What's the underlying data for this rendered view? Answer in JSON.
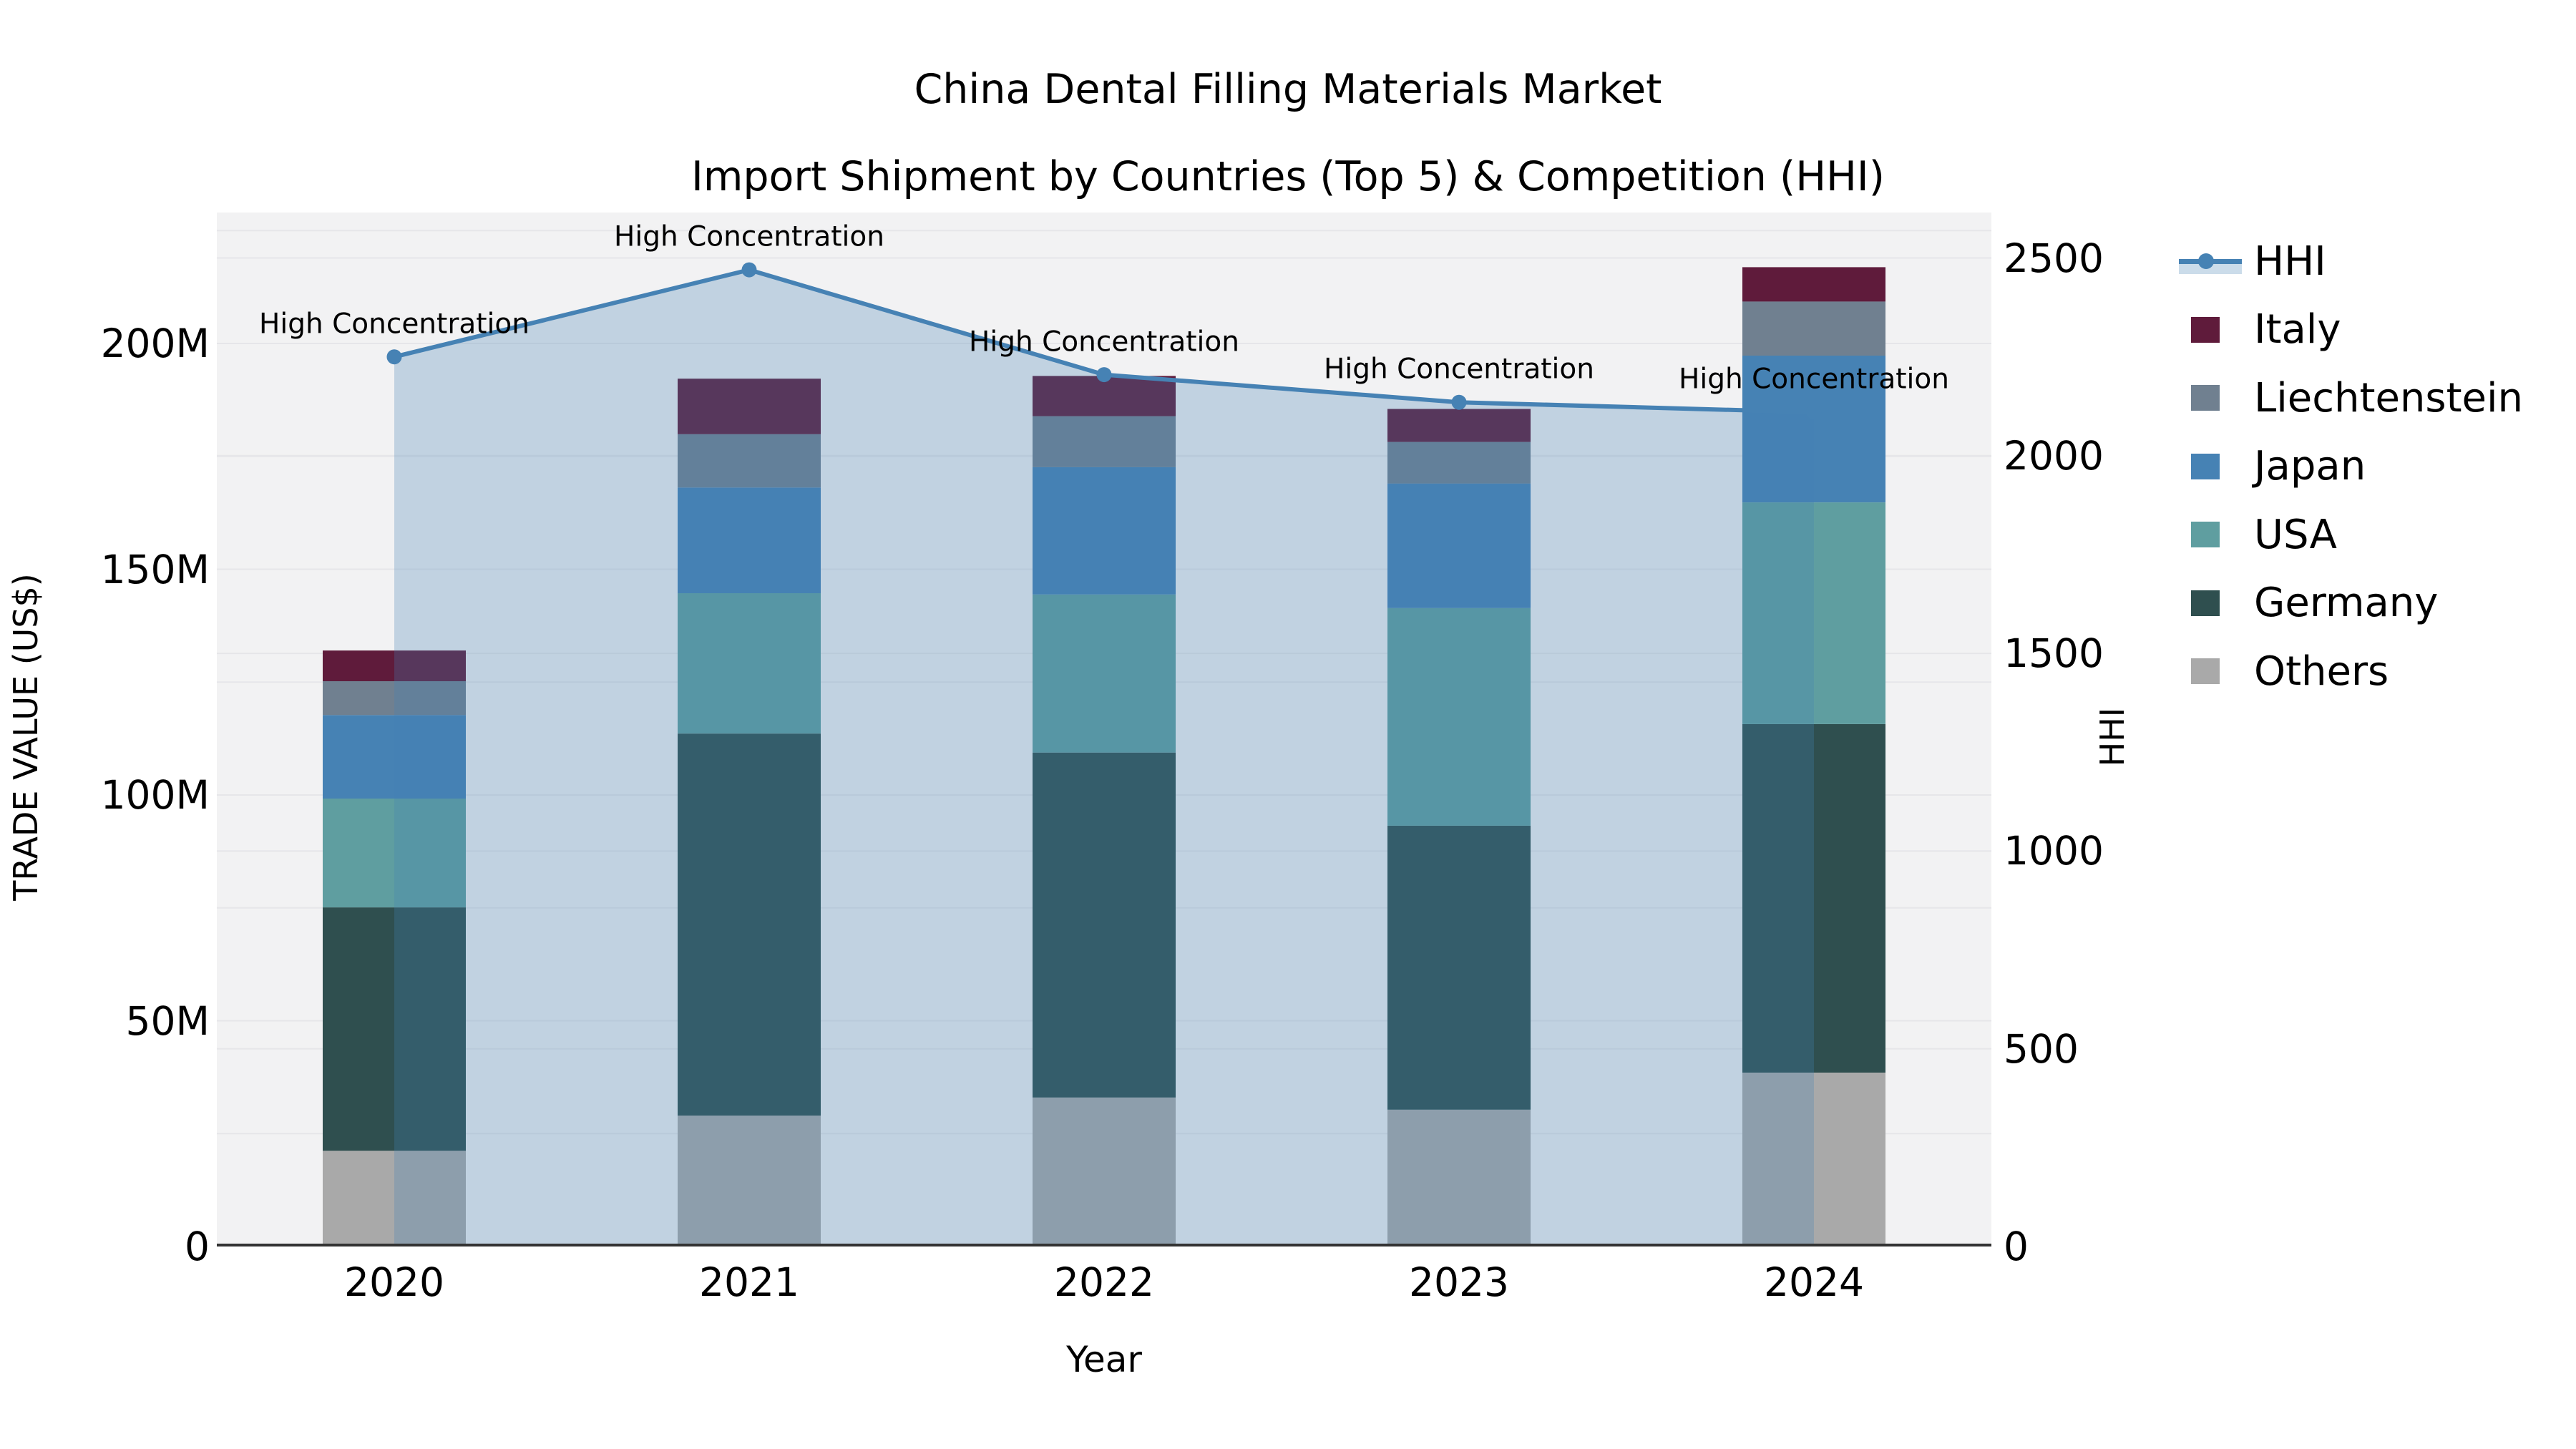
{
  "title": {
    "line1": "China Dental Filling Materials Market",
    "line2": "Import Shipment by Countries (Top 5) & Competition (HHI)"
  },
  "axes": {
    "x": {
      "label": "Year",
      "tick_labels": [
        "2020",
        "2021",
        "2022",
        "2023",
        "2024"
      ]
    },
    "left": {
      "label": "TRADE VALUE (US$)",
      "tick_labels": [
        "0",
        "50M",
        "100M",
        "150M",
        "200M"
      ],
      "tick_values": [
        0,
        50,
        100,
        150,
        200
      ],
      "ylim": [
        0,
        229
      ],
      "grid_step": 25
    },
    "right": {
      "label": "HHI",
      "tick_labels": [
        "0",
        "500",
        "1000",
        "1500",
        "2000",
        "2500"
      ],
      "tick_values": [
        0,
        500,
        1000,
        1500,
        2000,
        2500
      ],
      "ylim": [
        0,
        2615
      ],
      "grid_step": 500
    }
  },
  "legend": {
    "items": [
      {
        "label": "HHI",
        "type": "line",
        "color": "#4682b4",
        "fill": "rgba(70,130,180,0.28)"
      },
      {
        "label": "Italy",
        "type": "patch",
        "color": "#5f1b3b"
      },
      {
        "label": "Liechtenstein",
        "type": "patch",
        "color": "#708090"
      },
      {
        "label": "Japan",
        "type": "patch",
        "color": "#4682b4"
      },
      {
        "label": "USA",
        "type": "patch",
        "color": "#5f9ea0"
      },
      {
        "label": "Germany",
        "type": "patch",
        "color": "#2f4f4f"
      },
      {
        "label": "Others",
        "type": "patch",
        "color": "#a9a9a9"
      }
    ]
  },
  "chart_data": {
    "type": "bar",
    "subtype": "stacked-bars-with-secondary-line",
    "title": "China Dental Filling Materials Market — Import Shipment by Countries (Top 5) & Competition (HHI)",
    "xlabel": "Year",
    "ylabel_left": "TRADE VALUE (US$)",
    "ylabel_right": "HHI",
    "categories": [
      "2020",
      "2021",
      "2022",
      "2023",
      "2024"
    ],
    "unit": "million US$",
    "stack_order_bottom_to_top": [
      "Others",
      "Germany",
      "USA",
      "Japan",
      "Liechtenstein",
      "Italy"
    ],
    "series": [
      {
        "name": "Others",
        "axis": "left",
        "color": "#a9a9a9",
        "values": [
          21.2,
          29.0,
          33.0,
          30.3,
          38.5
        ]
      },
      {
        "name": "Germany",
        "axis": "left",
        "color": "#2f4f4f",
        "values": [
          53.9,
          84.6,
          76.4,
          62.9,
          77.2
        ]
      },
      {
        "name": "USA",
        "axis": "left",
        "color": "#5f9ea0",
        "values": [
          24.1,
          31.1,
          35.0,
          48.2,
          49.1
        ]
      },
      {
        "name": "Japan",
        "axis": "left",
        "color": "#4682b4",
        "values": [
          18.5,
          23.4,
          28.2,
          27.6,
          32.5
        ]
      },
      {
        "name": "Liechtenstein",
        "axis": "left",
        "color": "#708090",
        "values": [
          7.5,
          11.8,
          11.3,
          9.2,
          12.0
        ]
      },
      {
        "name": "Italy",
        "axis": "left",
        "color": "#5f1b3b",
        "values": [
          6.8,
          12.3,
          8.9,
          7.3,
          7.6
        ]
      }
    ],
    "line_series": {
      "name": "HHI",
      "axis": "right",
      "color": "#4682b4",
      "area_fill": "rgba(70,130,180,0.28)",
      "values": [
        2250,
        2470,
        2205,
        2135,
        2110
      ],
      "point_annotations": [
        "High Concentration",
        "High Concentration",
        "High Concentration",
        "High Concentration",
        "High Concentration"
      ]
    },
    "totals_left_axis": [
      132.0,
      192.2,
      192.8,
      185.5,
      216.9
    ],
    "grid": true,
    "legend_position": "right-outside",
    "axis_ranges": {
      "left": [
        0,
        229
      ],
      "right": [
        0,
        2615
      ]
    }
  },
  "colors": {
    "figure_bg": "#ffffff",
    "plot_bg": "#f2f2f3",
    "grid": "#e6e6e9",
    "spine": "#333333",
    "text": "#000000"
  }
}
